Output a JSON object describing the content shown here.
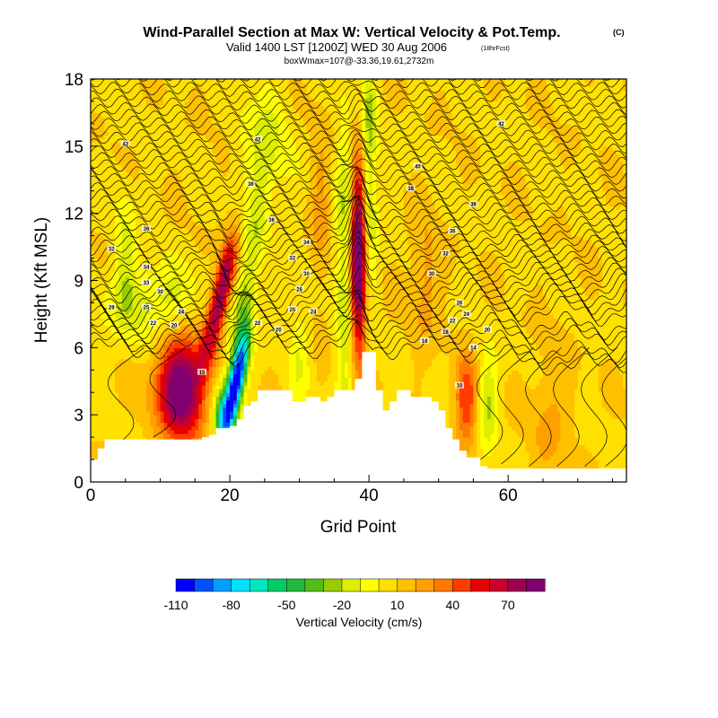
{
  "chart_data": {
    "type": "heatmap",
    "title": "Wind-Parallel Section at Max W: Vertical Velocity & Pot.Temp.",
    "title_suffix": "(C)",
    "subtitle": "Valid 1400 LST [1200Z] WED 30 Aug 2006",
    "subtitle_suffix": "(18hrFcst)",
    "subtitle2": "boxWmax=107@-33.36,19.61,2732m",
    "xlabel": "Grid Point",
    "ylabel": "Height (Kft MSL)",
    "xlim": [
      0,
      77
    ],
    "ylim": [
      0,
      18
    ],
    "xticks": [
      0,
      20,
      40,
      60
    ],
    "yticks": [
      0,
      3,
      6,
      9,
      12,
      15,
      18
    ],
    "colorbar": {
      "label": "Vertical Velocity (cm/s)",
      "tick_labels": [
        "-110",
        "-80",
        "-50",
        "-20",
        "10",
        "40",
        "70"
      ],
      "tick_values": [
        -110,
        -80,
        -50,
        -20,
        10,
        40,
        70
      ],
      "min": -110,
      "step": 10,
      "colors": [
        "#0000ff",
        "#0050ff",
        "#00a0ff",
        "#00e0ff",
        "#00e6be",
        "#00cc66",
        "#22b83a",
        "#55bb1a",
        "#99cc00",
        "#ddee00",
        "#ffff00",
        "#ffe000",
        "#ffc000",
        "#ffa000",
        "#ff7800",
        "#ff3c00",
        "#e60000",
        "#c8002a",
        "#a00050",
        "#800070"
      ]
    },
    "terrain_kft": [
      1.0,
      1.5,
      1.9,
      1.9,
      1.9,
      1.9,
      1.9,
      1.9,
      1.9,
      1.9,
      1.9,
      1.9,
      1.9,
      1.9,
      1.9,
      1.9,
      2.0,
      2.1,
      2.4,
      2.4,
      2.5,
      2.8,
      3.4,
      3.6,
      4.1,
      4.1,
      4.1,
      4.1,
      4.1,
      3.6,
      3.6,
      3.8,
      3.8,
      3.6,
      3.8,
      4.1,
      4.1,
      4.1,
      4.6,
      5.8,
      5.8,
      4.1,
      3.2,
      3.6,
      4.1,
      4.1,
      3.8,
      3.8,
      3.8,
      3.6,
      3.2,
      2.4,
      1.9,
      1.4,
      1.1,
      1.1,
      0.7,
      0.6,
      0.6,
      0.6,
      0.6,
      0.6,
      0.6,
      0.6,
      0.6,
      0.6,
      0.6,
      0.6,
      0.6,
      0.6,
      0.6,
      0.6,
      0.6,
      0.6,
      0.6,
      0.6,
      0.6,
      0.6
    ],
    "w_features": [
      {
        "x": 13,
        "z": 4.2,
        "sx": 2.5,
        "sz": 1.6,
        "amp": 90
      },
      {
        "x": 18,
        "z": 7.5,
        "sx": 1.0,
        "sz": 1.7,
        "amp": 60,
        "tilt": 0.7
      },
      {
        "x": 19.5,
        "z": 9.5,
        "sx": 0.9,
        "sz": 1.3,
        "amp": 40,
        "tilt": 0.5
      },
      {
        "x": 21,
        "z": 4.5,
        "sx": 0.8,
        "sz": 1.5,
        "amp": -110,
        "tilt": 0.6
      },
      {
        "x": 19,
        "z": 3,
        "sx": 1,
        "sz": 1,
        "amp": -60
      },
      {
        "x": 22,
        "z": 8,
        "sx": 1,
        "sz": 3.5,
        "amp": -35,
        "tilt": 0.5
      },
      {
        "x": 38.5,
        "z": 10,
        "sx": 0.8,
        "sz": 3,
        "amp": 100
      },
      {
        "x": 36.5,
        "z": 9.5,
        "sx": 0.9,
        "sz": 5,
        "amp": -30
      },
      {
        "x": 40,
        "z": 14,
        "sx": 0.8,
        "sz": 4,
        "amp": -35
      },
      {
        "x": 54,
        "z": 3.5,
        "sx": 1.2,
        "sz": 1.5,
        "amp": 40
      },
      {
        "x": 57,
        "z": 3.5,
        "sx": 1,
        "sz": 1.5,
        "amp": -30
      },
      {
        "x": 9,
        "z": 8,
        "sx": 5,
        "sz": 1.2,
        "amp": -25
      },
      {
        "x": 5,
        "z": 10.5,
        "sx": 1,
        "sz": 2,
        "amp": -20
      },
      {
        "x": 25,
        "z": 15,
        "sx": 2.5,
        "sz": 2,
        "amp": -20
      },
      {
        "x": 48,
        "z": 9,
        "sx": 1.5,
        "sz": 2,
        "amp": 18
      },
      {
        "x": 66,
        "z": 3,
        "sx": 2,
        "sz": 2,
        "amp": 15
      },
      {
        "x": 30,
        "z": 6,
        "sx": 1,
        "sz": 2,
        "amp": -15
      },
      {
        "x": 33,
        "z": 12,
        "sx": 1,
        "sz": 3,
        "amp": 15
      }
    ],
    "theta_contours": [
      {
        "label": "42",
        "at": [
          [
            5,
            15.1
          ],
          [
            24,
            15.3
          ],
          [
            59,
            16
          ]
        ]
      },
      {
        "label": "40",
        "at": [
          [
            47,
            14.1
          ]
        ]
      },
      {
        "label": "38",
        "at": [
          [
            23,
            13.3
          ],
          [
            46,
            13.1
          ],
          [
            55,
            12.4
          ]
        ]
      },
      {
        "label": "36",
        "at": [
          [
            8,
            11.3
          ],
          [
            26,
            11.7
          ],
          [
            52,
            11.2
          ]
        ]
      },
      {
        "label": "34",
        "at": [
          [
            31,
            10.7
          ]
        ]
      },
      {
        "label": "32",
        "at": [
          [
            3,
            10.4
          ],
          [
            29,
            10
          ],
          [
            51,
            10.2
          ]
        ]
      },
      {
        "label": "30",
        "at": [
          [
            31,
            9.3
          ],
          [
            49,
            9.3
          ]
        ]
      },
      {
        "label": "34",
        "at": [
          [
            8,
            9.6
          ]
        ]
      },
      {
        "label": "33",
        "at": [
          [
            8,
            8.9
          ]
        ]
      },
      {
        "label": "30",
        "at": [
          [
            10,
            8.5
          ]
        ]
      },
      {
        "label": "26",
        "at": [
          [
            30,
            8.6
          ],
          [
            53,
            8.0
          ]
        ]
      },
      {
        "label": "25",
        "at": [
          [
            8,
            7.8
          ],
          [
            29,
            7.7
          ]
        ]
      },
      {
        "label": "24",
        "at": [
          [
            13,
            7.6
          ],
          [
            32,
            7.6
          ],
          [
            54,
            7.5
          ]
        ]
      },
      {
        "label": "28",
        "at": [
          [
            3,
            7.8
          ]
        ]
      },
      {
        "label": "22",
        "at": [
          [
            9,
            7.1
          ],
          [
            24,
            7.1
          ],
          [
            52,
            7.2
          ]
        ]
      },
      {
        "label": "20",
        "at": [
          [
            12,
            7.0
          ],
          [
            27,
            6.8
          ],
          [
            57,
            6.8
          ]
        ]
      },
      {
        "label": "18",
        "at": [
          [
            51,
            6.7
          ]
        ]
      },
      {
        "label": "16",
        "at": [
          [
            48,
            6.3
          ]
        ]
      },
      {
        "label": "14",
        "at": [
          [
            55,
            6.0
          ]
        ]
      },
      {
        "label": "15",
        "at": [
          [
            16,
            4.9
          ]
        ]
      },
      {
        "label": "10",
        "at": [
          [
            53,
            4.3
          ]
        ]
      }
    ]
  }
}
